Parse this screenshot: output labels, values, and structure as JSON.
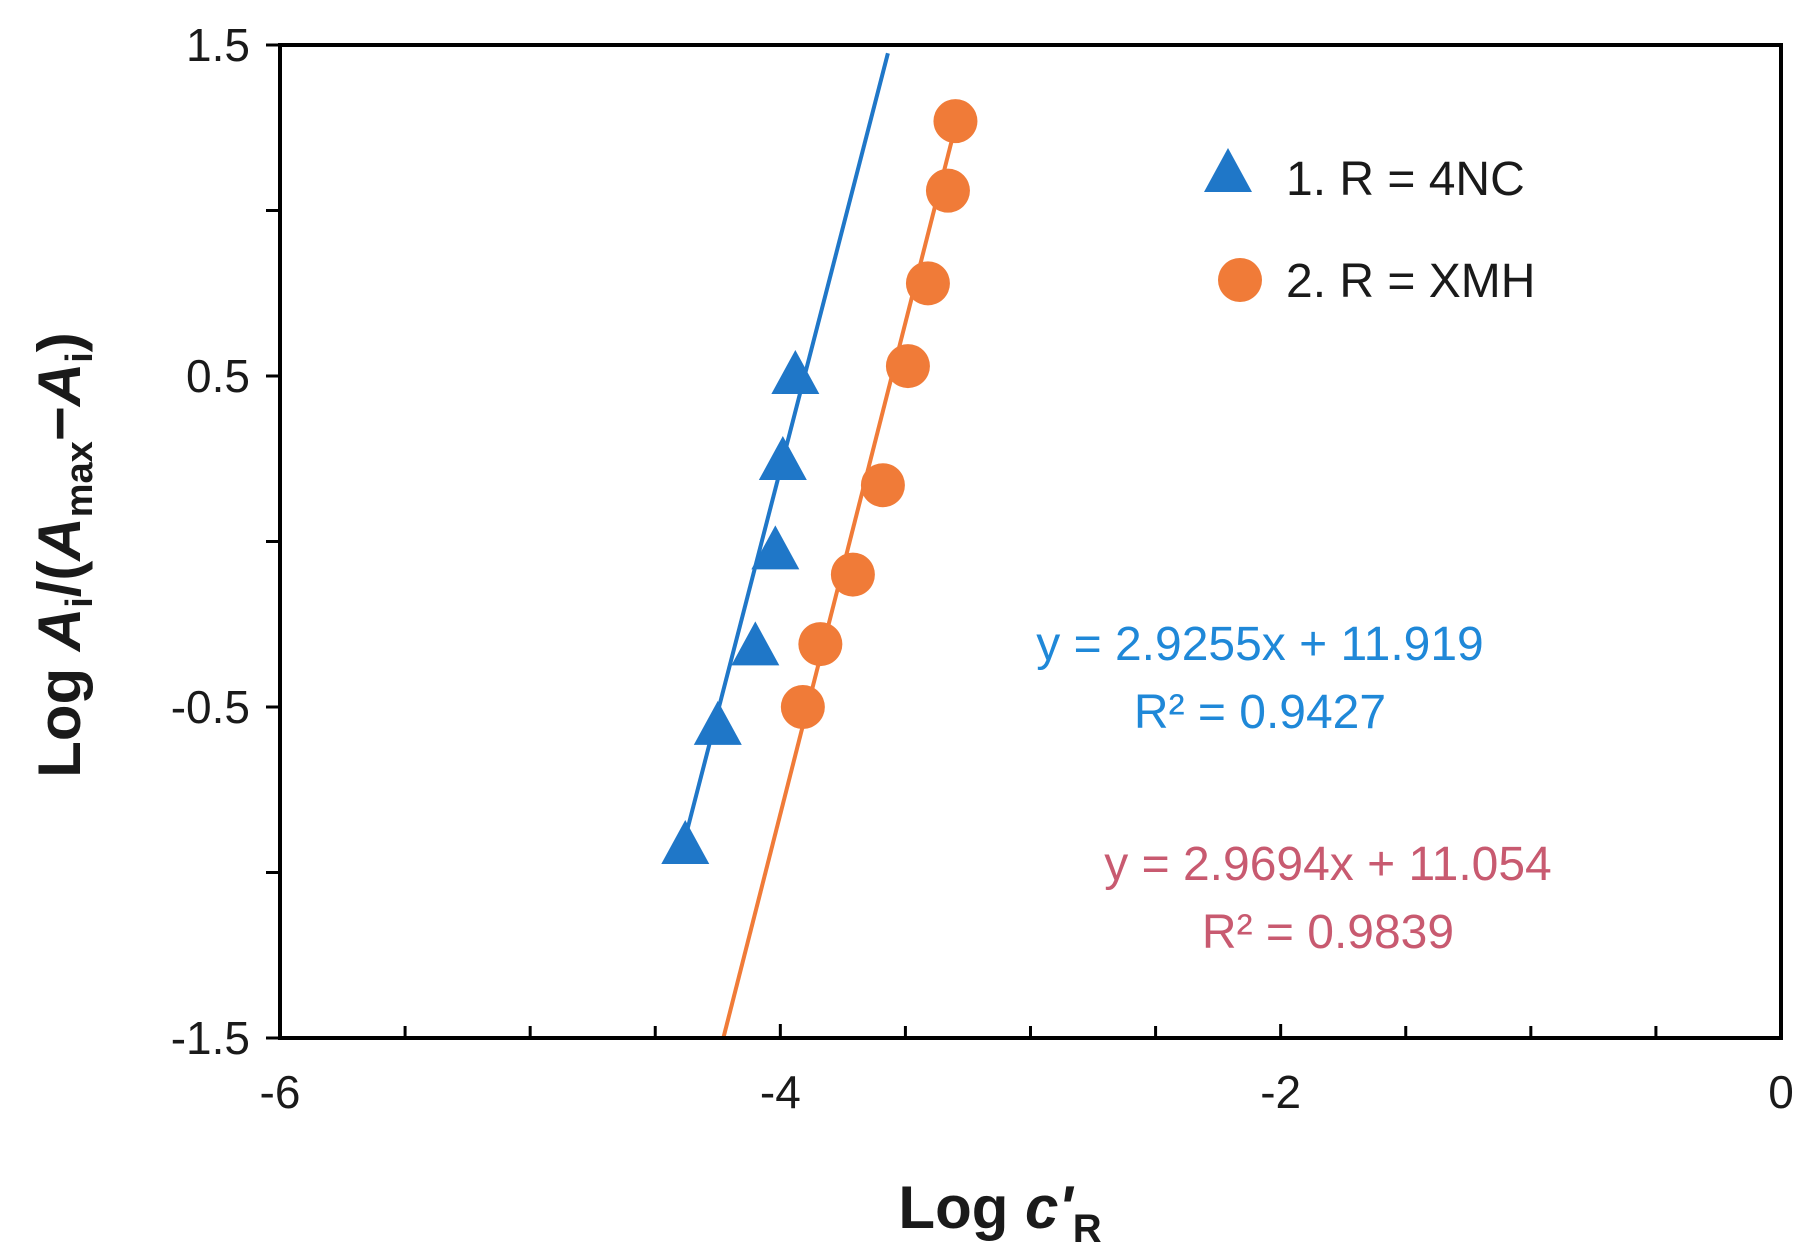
{
  "chart_data": {
    "type": "scatter",
    "xlabel": {
      "prefix": "Log ",
      "var": "c'",
      "sub": "R"
    },
    "ylabel": {
      "prefix": "Log ",
      "a1": "A",
      "a1_sub": "i",
      "mid": "/(",
      "a2": "A",
      "a2_sub": "max",
      "dash": "−",
      "a3": "A",
      "a3_sub": "i",
      "close": ")"
    },
    "xlim": [
      -6,
      0
    ],
    "ylim": [
      -1.5,
      1.5
    ],
    "x_ticks": [
      -6,
      -4,
      -2,
      0
    ],
    "x_tick_labels": [
      "-6",
      "-4",
      "-2",
      "0"
    ],
    "x_minor_ticks": [
      -5.5,
      -5,
      -4.5,
      -3.5,
      -3,
      -2.5,
      -1.5,
      -1,
      -0.5
    ],
    "y_ticks": [
      1.5,
      0.5,
      -0.5,
      -1.5
    ],
    "y_tick_labels": [
      "1.5",
      "0.5",
      "-0.5",
      "-1.5"
    ],
    "y_minor_ticks": [
      1,
      0,
      -1
    ],
    "grid": false,
    "legend_position": "top-right",
    "series": [
      {
        "name": "1. R = 4NC",
        "marker": "triangle",
        "color": "#1f77c8",
        "x": [
          -4.38,
          -4.25,
          -4.1,
          -4.02,
          -3.99,
          -3.94
        ],
        "y": [
          -0.92,
          -0.56,
          -0.32,
          -0.03,
          0.24,
          0.5
        ],
        "trendline": {
          "slope": 2.9255,
          "intercept": 11.919,
          "x_range": [
            -4.38,
            -3.57
          ],
          "equation": "y = 2.9255x + 11.919",
          "r2": "R² = 0.9427"
        }
      },
      {
        "name": "2. R = XMH",
        "marker": "circle",
        "color": "#f07b38",
        "x": [
          -3.91,
          -3.84,
          -3.71,
          -3.59,
          -3.49,
          -3.41,
          -3.33,
          -3.3
        ],
        "y": [
          -0.5,
          -0.31,
          -0.1,
          0.17,
          0.53,
          0.78,
          1.06,
          1.27
        ],
        "trendline": {
          "slope": 2.9694,
          "intercept": 11.054,
          "x_range": [
            -4.23,
            -3.28
          ],
          "equation": "y = 2.9694x + 11.054",
          "r2": "R² = 0.9839"
        }
      }
    ],
    "equation_colors": [
      "#1f88d8",
      "#c85a70"
    ]
  }
}
